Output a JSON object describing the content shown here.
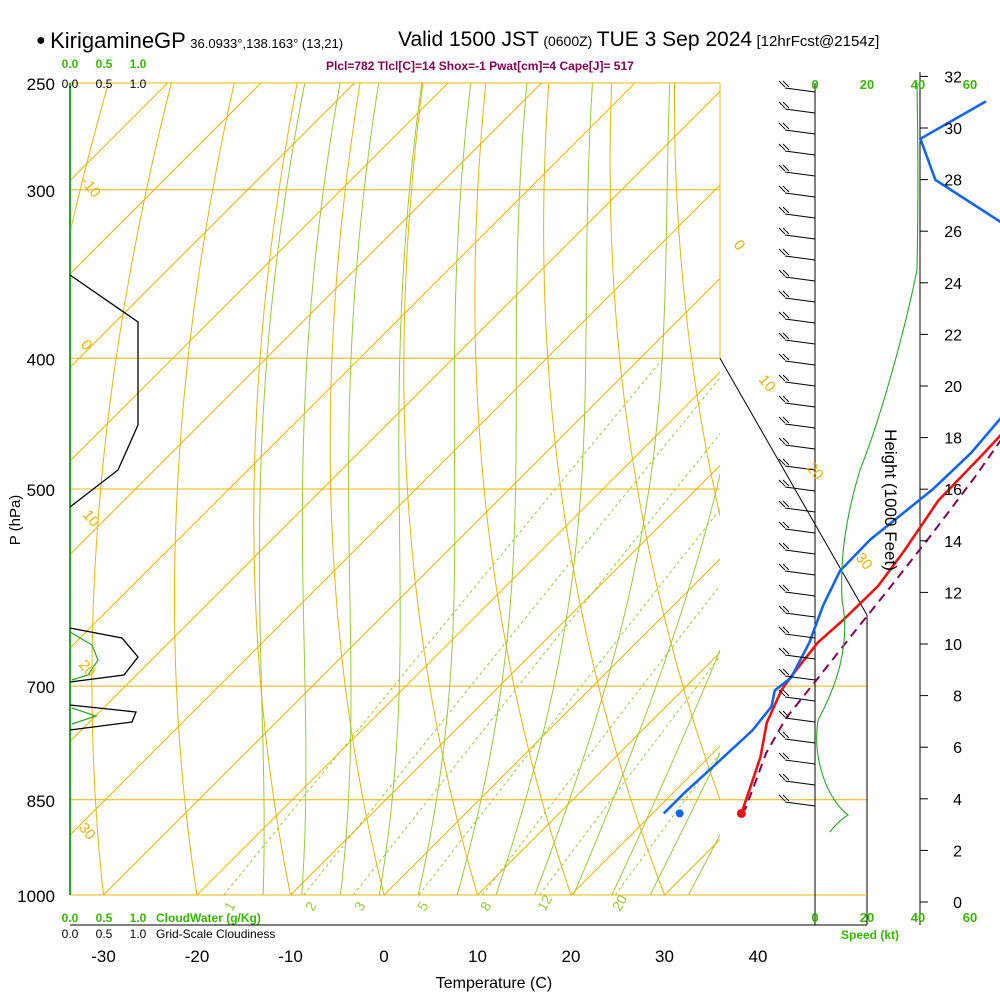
{
  "header": {
    "bullet": "●",
    "station": "KirigamineGP",
    "coords": "36.0933°,138.163° (13,21)",
    "valid": "Valid 1500 JST",
    "zulu": "(0600Z)",
    "date": "TUE 3 Sep 2024",
    "fcst": "[12hrFcst@2154z]"
  },
  "parcel_info": "Plcl=782 Tlcl[C]=14 Shox=-1 Pwat[cm]=4 Cape[J]= 517",
  "colors": {
    "temperature": "#ee1111",
    "dewpoint": "#1166ee",
    "parcel": "#880055",
    "isobar": "#f0b400",
    "dry_adiabat": "#f0b400",
    "moist_adiabat": "#99cc33",
    "mixing_ratio": "#99cc33",
    "cloud": "#22aa22",
    "label_green": "#33bb00"
  },
  "chart_data": [
    {
      "type": "line",
      "subtype": "skew-T log-P sounding",
      "xlabel": "Temperature (C)",
      "ylabel": "P (hPa)",
      "ylabel_right": "Height (1000 Feet)",
      "x_ticks": [
        -30,
        -20,
        -10,
        0,
        10,
        20,
        30,
        40
      ],
      "y_ticks": [
        250,
        300,
        400,
        500,
        700,
        850,
        1000
      ],
      "height_ticks": [
        0,
        2,
        4,
        6,
        8,
        10,
        12,
        14,
        16,
        18,
        20,
        22,
        24,
        26,
        28,
        30,
        32
      ],
      "xlim": [
        -35,
        45
      ],
      "ylim": [
        1050,
        250
      ],
      "series": [
        {
          "key": "temperature",
          "points": [
            [
              9.3,
              255
            ],
            [
              12.5,
              290
            ],
            [
              13.5,
              330
            ],
            [
              14.4,
              360
            ],
            [
              15.6,
              400
            ],
            [
              16.6,
              440
            ],
            [
              16.9,
              470
            ],
            [
              17.1,
              510
            ],
            [
              18.8,
              555
            ],
            [
              19.8,
              590
            ],
            [
              19.7,
              625
            ],
            [
              19.4,
              650
            ],
            [
              20.2,
              690
            ],
            [
              20.6,
              705
            ],
            [
              22.5,
              745
            ],
            [
              25.5,
              790
            ],
            [
              27.8,
              835
            ],
            [
              29.5,
              870
            ]
          ]
        },
        {
          "key": "dewpoint",
          "points": [
            [
              -20.5,
              258
            ],
            [
              -23.5,
              275
            ],
            [
              -17.5,
              295
            ],
            [
              -4.5,
              320
            ],
            [
              4,
              340
            ],
            [
              10.5,
              365
            ],
            [
              12.8,
              400
            ],
            [
              14.9,
              440
            ],
            [
              15.5,
              470
            ],
            [
              15.3,
              500
            ],
            [
              14,
              545
            ],
            [
              14.1,
              575
            ],
            [
              16,
              610
            ],
            [
              18.5,
              650
            ],
            [
              20.3,
              690
            ],
            [
              19.9,
              705
            ],
            [
              21.3,
              725
            ],
            [
              21.8,
              755
            ],
            [
              21.5,
              800
            ],
            [
              21.2,
              840
            ],
            [
              21.2,
              870
            ]
          ]
        },
        {
          "key": "parcel",
          "dashed": true,
          "points": [
            [
              14.5,
              355
            ],
            [
              15.5,
              400
            ],
            [
              16.5,
              440
            ],
            [
              18.5,
              490
            ],
            [
              20,
              540
            ],
            [
              21.2,
              590
            ],
            [
              22.2,
              640
            ],
            [
              23.2,
              690
            ],
            [
              24.1,
              740
            ],
            [
              25.7,
              785
            ],
            [
              27.9,
              830
            ],
            [
              29.5,
              865
            ]
          ]
        }
      ],
      "surface_dewpoint": [
        22.9,
        870
      ],
      "surface_temperature": [
        29.5,
        870
      ],
      "dry_adiabat_labels": [
        "-10",
        "0",
        "10",
        "20",
        "30",
        "0",
        "10",
        "20",
        "30"
      ],
      "mixing_ratio_labels": [
        "1",
        "2",
        "3",
        "5",
        "8",
        "12",
        "20"
      ]
    },
    {
      "type": "line",
      "title": "CloudWater (g/Kg)",
      "title2": "Grid-Scale Cloudiness",
      "scale_ticks": [
        "0.0",
        "0.5",
        "1.0"
      ]
    },
    {
      "type": "line",
      "subtype": "wind speed profile",
      "xlabel": "Speed (kt)",
      "x_ticks": [
        "0",
        "20",
        "40",
        "60"
      ],
      "x_ticks_top": [
        "0",
        "20",
        "40",
        "60"
      ]
    }
  ]
}
